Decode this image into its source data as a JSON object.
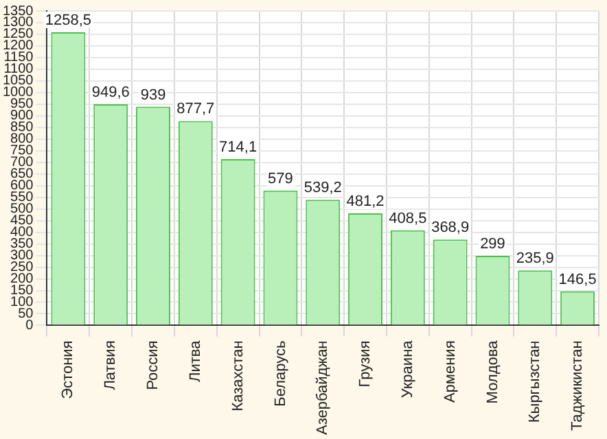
{
  "chart_data": {
    "type": "bar",
    "categories": [
      "Эстония",
      "Латвия",
      "Россия",
      "Литва",
      "Казахстан",
      "Беларусь",
      "Азербайджан",
      "Грузия",
      "Украина",
      "Армения",
      "Молдова",
      "Кыргызстан",
      "Таджикистан"
    ],
    "values": [
      1258.5,
      949.6,
      939,
      877.7,
      714.1,
      579,
      539.2,
      481.2,
      408.5,
      368.9,
      299,
      235.9,
      146.5
    ],
    "value_labels": [
      "1258,5",
      "949,6",
      "939",
      "877,7",
      "714,1",
      "579",
      "539,2",
      "481,2",
      "408,5",
      "368,9",
      "299",
      "235,9",
      "146,5"
    ],
    "color": "#b9f0b9",
    "ylim": [
      0,
      1350
    ],
    "yticks": [
      0,
      50,
      100,
      150,
      200,
      250,
      300,
      350,
      400,
      450,
      500,
      550,
      600,
      650,
      700,
      750,
      800,
      850,
      900,
      950,
      1000,
      1050,
      1100,
      1150,
      1200,
      1250,
      1300,
      1350
    ],
    "grid": true,
    "legend": false
  }
}
